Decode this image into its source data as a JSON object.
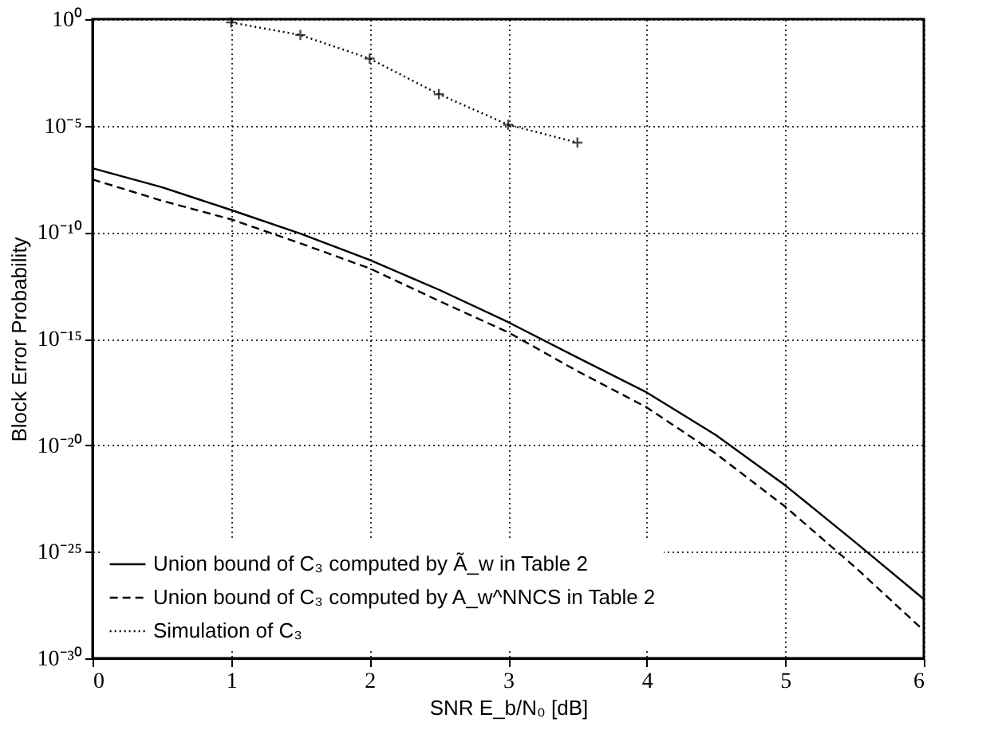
{
  "chart_data": {
    "type": "line",
    "xlabel": "SNR E_b/N₀ [dB]",
    "ylabel": "Block Error Probability",
    "log": "y",
    "grid": true,
    "legend": "bottom left",
    "x": [
      0,
      0.5,
      1,
      1.5,
      2,
      2.5,
      3,
      3.5,
      4,
      4.5,
      5,
      5.5,
      6
    ],
    "xlim": [
      0,
      6
    ],
    "xticks": [
      0,
      1,
      2,
      3,
      4,
      5,
      6
    ],
    "ylim": [
      1e-30,
      1
    ],
    "yticks": [
      {
        "value": 1,
        "label": "10⁰"
      },
      {
        "value": 1e-05,
        "label": "10⁻⁵"
      },
      {
        "value": 1e-10,
        "label": "10⁻¹⁰"
      },
      {
        "value": 1e-15,
        "label": "10⁻¹⁵"
      },
      {
        "value": 1e-20,
        "label": "10⁻²⁰"
      },
      {
        "value": 1e-25,
        "label": "10⁻²⁵"
      },
      {
        "value": 1e-30,
        "label": "10⁻³⁰"
      }
    ],
    "series": [
      {
        "name": "Union bound of C₃ computed by Ã_w in Table 2",
        "color": "#000000",
        "line_style": "solid",
        "marker": "none",
        "values": [
          1e-07,
          1.3e-08,
          1.1e-09,
          8.5e-11,
          5e-12,
          2e-13,
          6e-15,
          1.3e-16,
          3e-18,
          3e-20,
          1.3e-22,
          3e-25,
          6e-28
        ]
      },
      {
        "name": "Union bound of C₃ computed by A_w^NNCS in Table 2",
        "color": "#000000",
        "line_style": "dashed",
        "marker": "none",
        "values": [
          3e-08,
          3e-09,
          4e-10,
          3e-11,
          2e-12,
          6e-14,
          2e-15,
          3e-17,
          6e-19,
          4e-21,
          1.3e-23,
          2e-26,
          2e-29
        ]
      },
      {
        "name": "Simulation of C₃",
        "color": "#000000",
        "line_style": "dotted",
        "marker": "cross",
        "x": [
          1,
          1.5,
          2,
          2.5,
          3,
          3.5
        ],
        "values": [
          0.7,
          0.18,
          0.014,
          0.0003,
          1.1e-05,
          1.6e-06
        ]
      }
    ]
  }
}
